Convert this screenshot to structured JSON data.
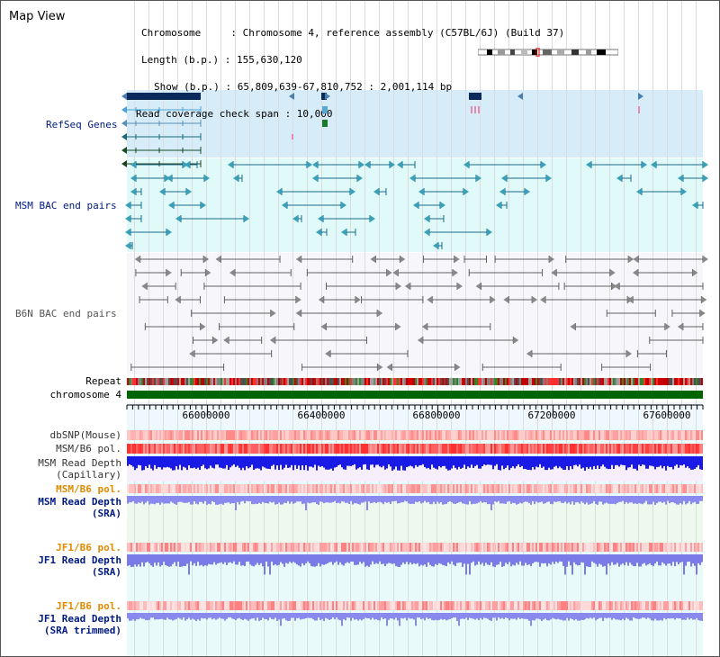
{
  "page": {
    "title": "Map View"
  },
  "info": {
    "chromosome_label": "Chromosome     : Chromosome 4, reference assembly (C57BL/6J) (Build 37)",
    "length_label": "Length (b.p.) : 155,630,120",
    "show_label": "Show (b.p.) : 65,809,639-67,810,752 : 2,001,114 bp",
    "span_label": "Read coverage check span : 10,000"
  },
  "tracks": {
    "refseq": "RefSeq Genes",
    "msm_bac": "MSM BAC end pairs",
    "b6n_bac": "B6N BAC end pairs",
    "repeat": "Repeat",
    "chrom": "chromosome 4",
    "dbsnp": "dbSNP(Mouse)",
    "msm_b6_pol": "MSM/B6 pol.",
    "msm_depth_cap": "MSM Read Depth",
    "msm_depth_cap_sub": "(Capillary)",
    "msm_b6_pol2": "MSM/B6 pol.",
    "msm_depth_sra": "MSM Read Depth",
    "msm_depth_sra_sub": "(SRA)",
    "jf1_pol": "JF1/B6 pol.",
    "jf1_depth": "JF1 Read Depth",
    "jf1_depth_sub": "(SRA)",
    "jf1_pol2": "JF1/B6 pol.",
    "jf1_depth_trim": "JF1 Read Depth",
    "jf1_depth_trim_sub": "(SRA trimmed)"
  },
  "axis": {
    "ticks": [
      "66000000",
      "66400000",
      "66800000",
      "67200000",
      "67600000"
    ]
  },
  "colors": {
    "refseq_bg": "#d6ecf9",
    "msm_bg": "#e0fafa",
    "b6n_bg": "#f7f7fb",
    "chrom": "#006400",
    "msm_depth": "#1a1ae6",
    "sra_depth": "#8a8aee",
    "label_navy": "#001a80",
    "label_orange": "#e08a00"
  }
}
